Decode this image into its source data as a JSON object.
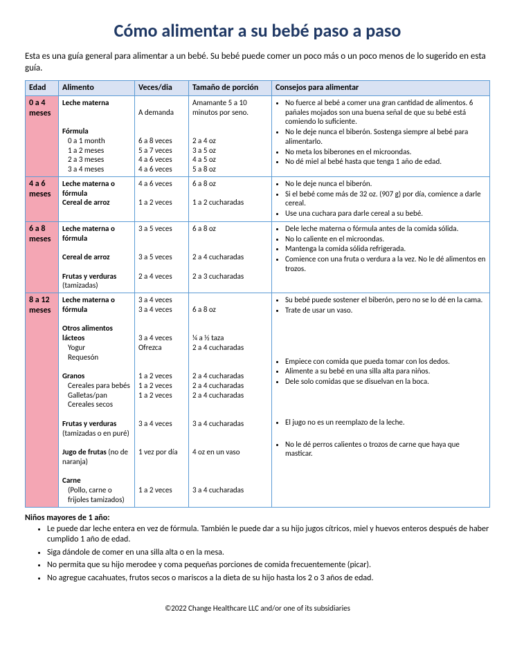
{
  "title": "Cómo alimentar a su bebé paso a paso",
  "intro": "Esta es una guía general para alimentar a un bebé. Su bebé puede comer un poco más o un poco menos de lo sugerido en esta guía.",
  "columns": [
    "Edad",
    "Alimento",
    "Veces/dia",
    "Tamaño de porción",
    "Consejos para alimentar"
  ],
  "rows": [
    {
      "age": "0 a 4 meses",
      "food_lines": [
        {
          "t": "Leche materna",
          "b": true
        },
        {
          "t": "",
          "b": false
        },
        {
          "t": "",
          "b": false
        },
        {
          "t": "Fórmula",
          "b": true
        },
        {
          "t": "0 a 1 month",
          "sub": true
        },
        {
          "t": "1 a 2 meses",
          "sub": true
        },
        {
          "t": "2 a 3 meses",
          "sub": true
        },
        {
          "t": "3 a 4 meses",
          "sub": true
        }
      ],
      "times_lines": [
        "",
        "A demanda",
        "",
        "",
        "6 a 8 veces",
        "5 a 7 veces",
        "4 a 6 veces",
        "4 a 6 veces"
      ],
      "size_lines": [
        "Amamante 5 a 10 minutos por seno.",
        "",
        "",
        "2 a 4 oz",
        "3 a 5 oz",
        "4 a 5 oz",
        "5 a 8 oz"
      ],
      "tips": [
        "No fuerce al bebé a comer una gran cantidad de alimentos. 6 pañales mojados son una buena señal de que su bebé está comiendo lo suficiente.",
        "No le deje nunca el biberón. Sostenga siempre al bebé para alimentarlo.",
        "No meta los biberones en el microondas.",
        "No dé miel al bebé hasta que tenga 1 año de edad."
      ]
    },
    {
      "age": "4 a 6 meses",
      "food_lines": [
        {
          "t": "Leche materna o fórmula",
          "b": true
        },
        {
          "t": "Cereal de arroz",
          "b": true
        }
      ],
      "times_lines": [
        "4 a 6 veces",
        "",
        "1 a 2 veces"
      ],
      "size_lines": [
        "6 a 8 oz",
        "",
        "1 a 2 cucharadas"
      ],
      "tips": [
        "No le deje nunca el biberón.",
        "Si el bebé come más de 32 oz. (907 g) por día, comience a darle cereal.",
        "Use una cuchara para darle cereal a su bebé."
      ]
    },
    {
      "age": "6 a 8 meses",
      "food_lines": [
        {
          "t": "Leche materna o fórmula",
          "b": true
        },
        {
          "t": "",
          "b": false
        },
        {
          "t": "Cereal de arroz",
          "b": true
        },
        {
          "t": "",
          "b": false
        },
        {
          "t": "Frutas y verduras",
          "b": true
        },
        {
          "t": "(tamizadas)",
          "b": false
        }
      ],
      "times_lines": [
        "3 a 5 veces",
        "",
        "",
        "3 a 5 veces",
        "",
        "2 a 4 veces"
      ],
      "size_lines": [
        "6 a 8 oz",
        "",
        "",
        "2 a 4 cucharadas",
        "",
        "2 a 3 cucharadas"
      ],
      "tips": [
        "Dele leche materna o fórmula antes de la comida sólida.",
        "No lo caliente en el microondas.",
        "Mantenga la comida sólida refrigerada.",
        "Comience con una fruta o verdura a la vez. No le dé alimentos en trozos."
      ]
    },
    {
      "age": "8 a 12 meses",
      "food_lines": [
        {
          "t": "Leche materna o fórmula",
          "b": true
        },
        {
          "t": "",
          "b": false
        },
        {
          "t": "Otros alimentos lácteos",
          "b": true
        },
        {
          "t": "Yogur",
          "sub": true
        },
        {
          "t": "Requesón",
          "sub": true
        },
        {
          "t": "",
          "b": false
        },
        {
          "t": "Granos",
          "b": true
        },
        {
          "t": "Cereales para bebés",
          "sub": true
        },
        {
          "t": "Galletas/pan",
          "sub": true
        },
        {
          "t": "Cereales secos",
          "sub": true
        },
        {
          "t": "",
          "b": false
        },
        {
          "t": "Frutas y verduras",
          "b": true
        },
        {
          "t": "(tamizadas o en puré)",
          "b": false
        },
        {
          "t": "",
          "b": false
        },
        {
          "t": "Jugo de frutas (no",
          "b": true,
          "mix": "Jugo de frutas",
          "rest": " (no de naranja)"
        },
        {
          "t": "",
          "b": false
        },
        {
          "t": "Carne",
          "b": true
        },
        {
          "t": "(Pollo, carne o frijoles tamizados)",
          "sub": true
        }
      ],
      "times_lines": [
        "3 a 4 veces",
        "3 a 4 veces",
        "",
        "",
        "3 a 4 veces",
        "Ofrezca",
        "",
        "",
        "1 a 2 veces",
        "1 a 2 veces",
        "1 a 2 veces",
        "",
        "",
        "3 a 4 veces",
        "",
        "",
        "1 vez por día",
        "",
        "",
        "",
        "1 a 2 veces"
      ],
      "size_lines": [
        "",
        "6 a 8 oz",
        "",
        "",
        "¼ a ½ taza",
        "2 a 4 cucharadas",
        "",
        "",
        "2 a 4 cucharadas",
        "2 a 4 cucharadas",
        "2 a 4 cucharadas",
        "",
        "",
        "3 a 4 cucharadas",
        "",
        "",
        "4 oz en un vaso",
        "",
        "",
        "",
        "3 a 4 cucharadas"
      ],
      "tips_groups": [
        [
          "Su bebé puede sostener el biberón, pero no se lo dé en la cama.",
          "Trate de usar un vaso."
        ],
        [
          "Empiece con comida que pueda tomar con los dedos.",
          "Alimente a su bebé en una silla alta para niños.",
          "Dele solo comidas que se disuelvan en la boca."
        ],
        [
          "El jugo no es un reemplazo de la leche."
        ],
        [
          "No le dé perros calientes o trozos de carne que haya que masticar."
        ]
      ]
    }
  ],
  "after_head": "Niños mayores de 1 año:",
  "after": [
    "Le puede dar leche entera en vez de fórmula. También le puede dar a su hijo jugos cítricos, miel y huevos enteros después de haber cumplido 1 año de edad.",
    "Siga dándole de comer en una silla alta o en la mesa.",
    "No permita que su hijo merodee y coma pequeñas porciones de comida frecuentemente (picar).",
    "No agregue cacahuates, frutos secos o mariscos a la dieta de su hijo hasta los 2 o 3 años de edad."
  ],
  "copyright": "©2022 Change Healthcare LLC and/or one of its subsidiaries"
}
